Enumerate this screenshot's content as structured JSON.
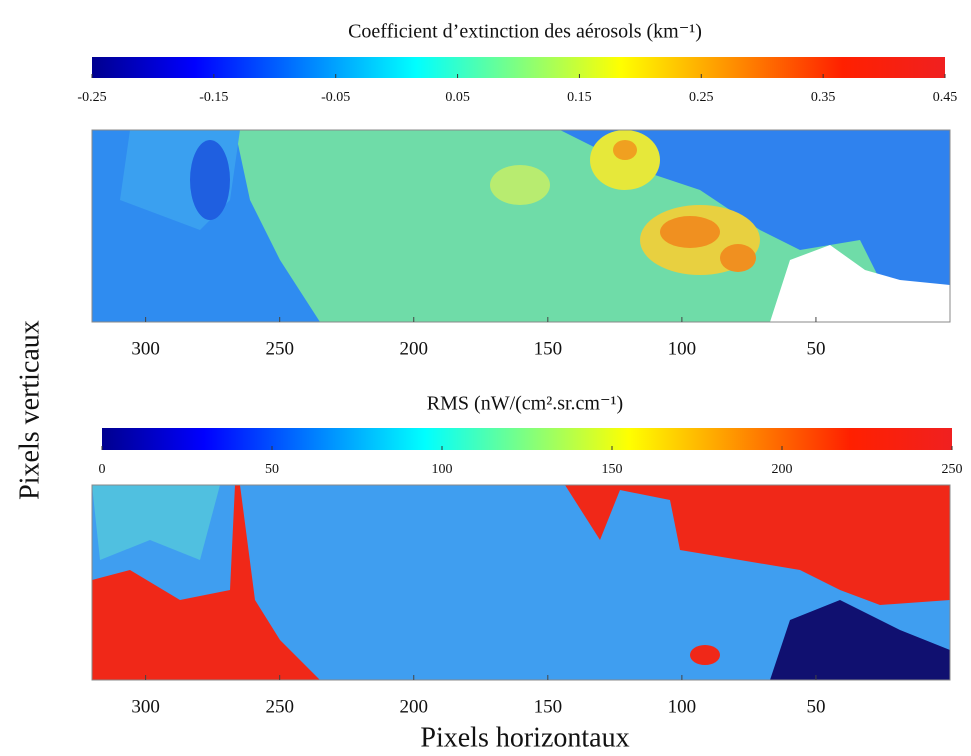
{
  "chart_data": [
    {
      "type": "heatmap",
      "title": "Coefficient d’extinction des aérosols (km⁻¹)",
      "colorbar": {
        "colormap": "jet",
        "lim": [
          -0.25,
          0.45
        ],
        "ticks": [
          -0.25,
          -0.15,
          -0.05,
          0.05,
          0.15,
          0.25,
          0.35,
          0.45
        ]
      },
      "xlim": [
        320,
        0
      ],
      "xticks": [
        300,
        250,
        200,
        150,
        100,
        50
      ]
    },
    {
      "type": "heatmap",
      "title": "RMS (nW/(cm².sr.cm⁻¹)",
      "colorbar": {
        "colormap": "jet",
        "lim": [
          0,
          250
        ],
        "ticks": [
          0,
          50,
          100,
          150,
          200,
          250
        ]
      },
      "xlim": [
        320,
        0
      ],
      "xticks": [
        300,
        250,
        200,
        150,
        100,
        50
      ]
    }
  ],
  "ylabel": "Pixels verticaux",
  "xlabel": "Pixels horizontaux"
}
